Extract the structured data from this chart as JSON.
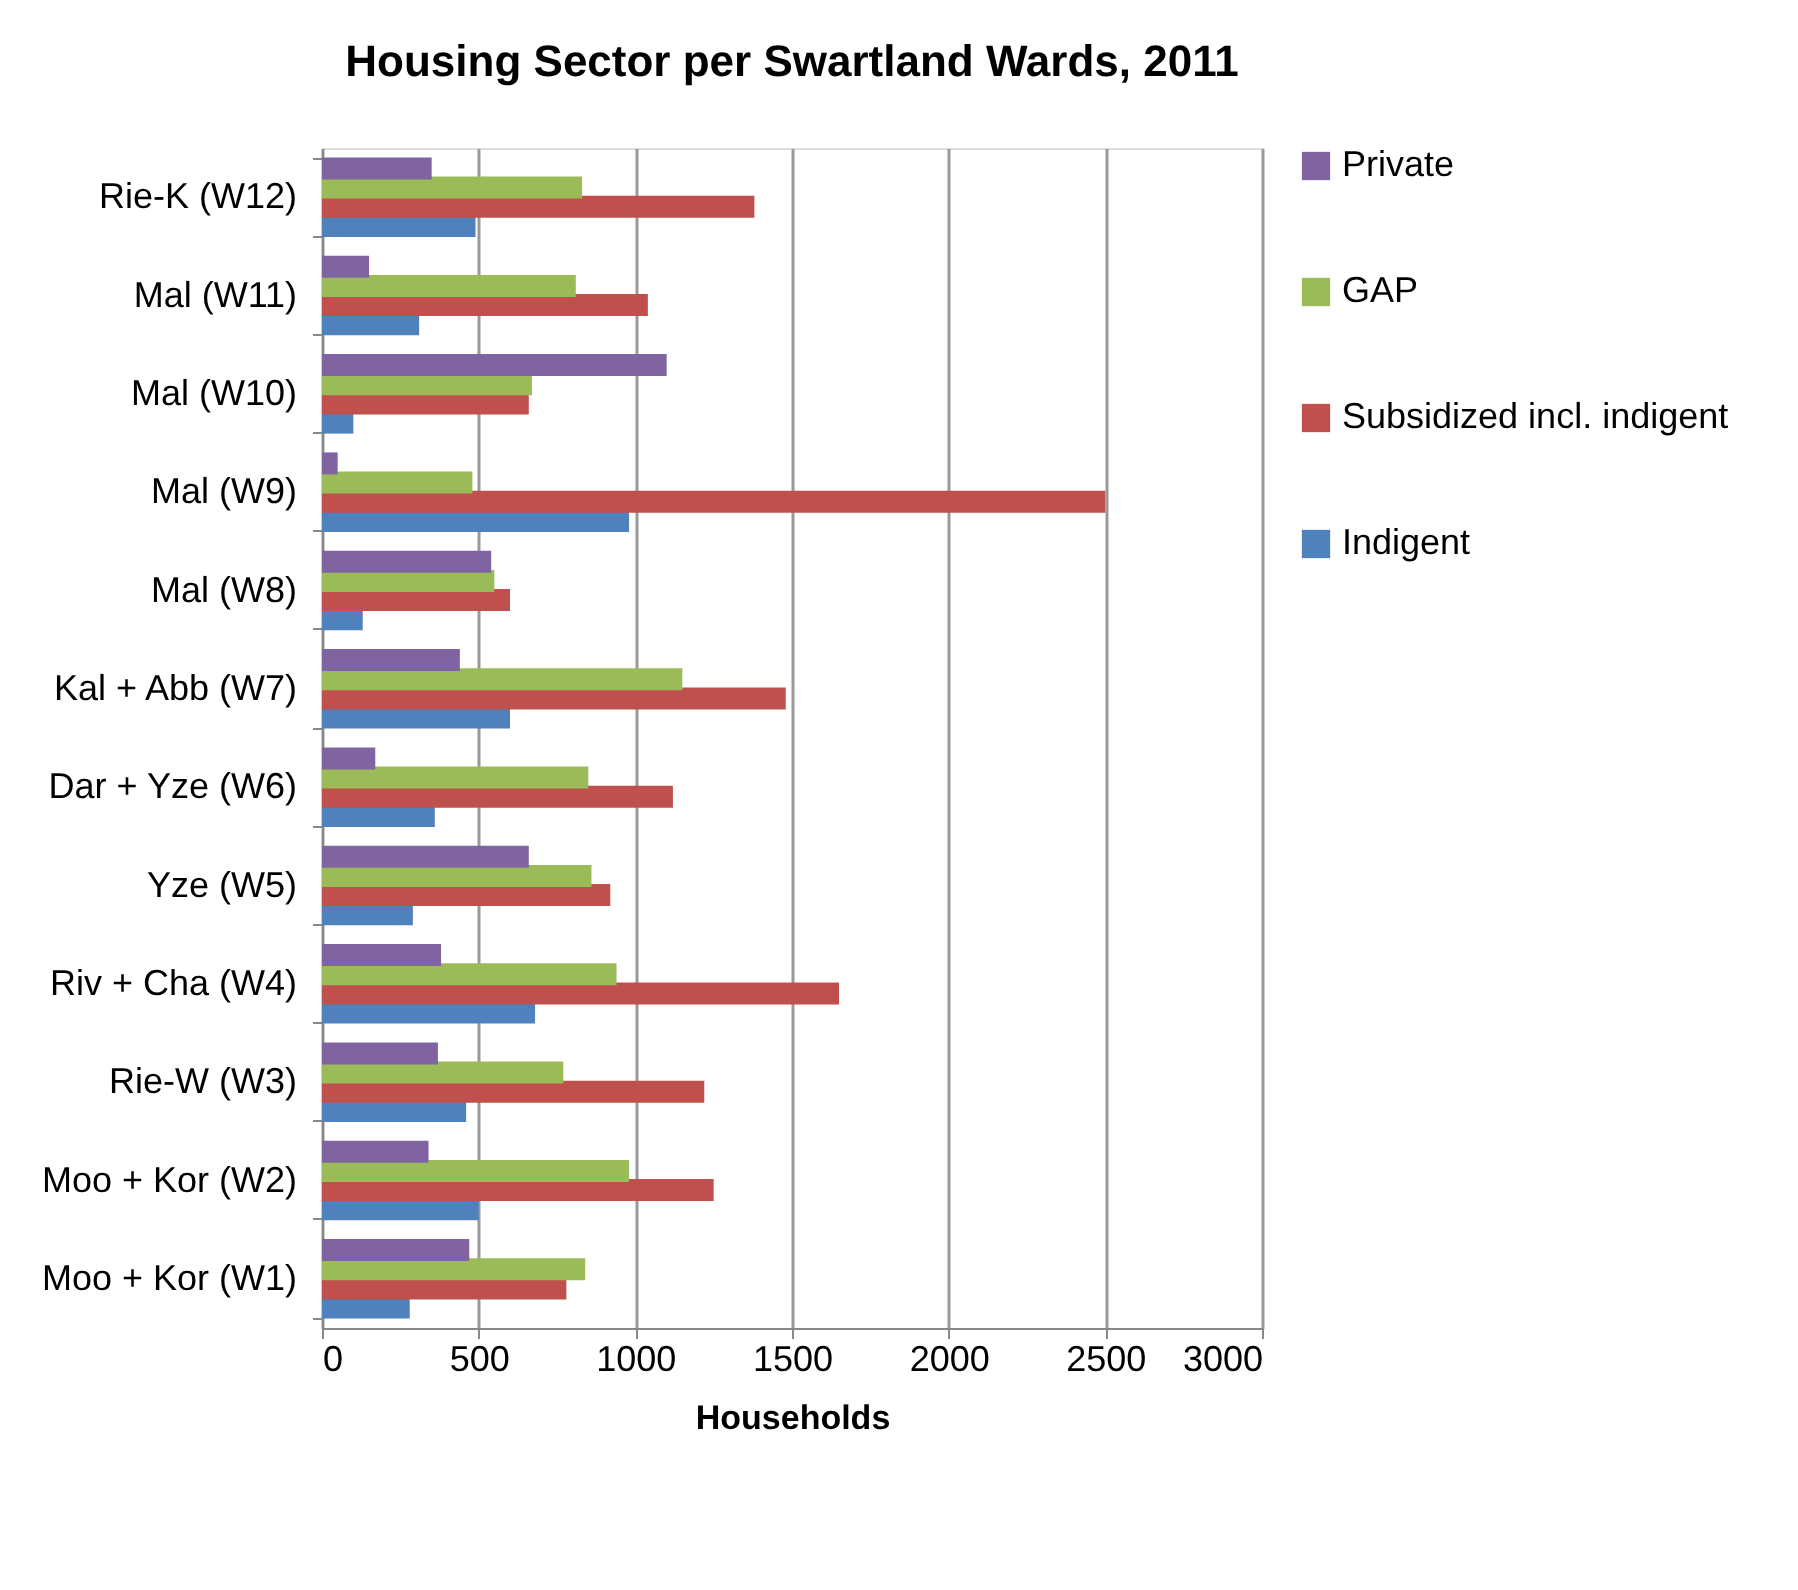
{
  "chart_data": {
    "type": "bar",
    "orientation": "horizontal",
    "title": "Housing Sector per Swartland Wards, 2011",
    "xlabel": "Households",
    "categories": [
      "Rie-K (W12)",
      "Mal (W11)",
      "Mal (W10)",
      "Mal (W9)",
      "Mal (W8)",
      "Kal + Abb (W7)",
      "Dar + Yze (W6)",
      "Yze (W5)",
      "Riv + Cha (W4)",
      "Rie-W (W3)",
      "Moo + Kor (W2)",
      "Moo + Kor (W1)"
    ],
    "series": [
      {
        "name": "Indigent",
        "color": "#4f81bd",
        "values": [
          490,
          310,
          100,
          980,
          130,
          600,
          360,
          290,
          680,
          460,
          500,
          280
        ]
      },
      {
        "name": "Subsidized incl. indigent",
        "color": "#c0504d",
        "values": [
          1380,
          1040,
          660,
          2500,
          600,
          1480,
          1120,
          920,
          1650,
          1220,
          1250,
          780
        ]
      },
      {
        "name": "GAP",
        "color": "#9bbb59",
        "values": [
          830,
          810,
          670,
          480,
          550,
          1150,
          850,
          860,
          940,
          770,
          980,
          840
        ]
      },
      {
        "name": "Private",
        "color": "#8064a2",
        "values": [
          350,
          150,
          1100,
          50,
          540,
          440,
          170,
          660,
          380,
          370,
          340,
          470
        ]
      }
    ],
    "xlim": [
      0,
      3000
    ],
    "xticks": [
      0,
      500,
      1000,
      1500,
      2000,
      2500,
      3000
    ],
    "grid": "x",
    "legend": "right"
  }
}
